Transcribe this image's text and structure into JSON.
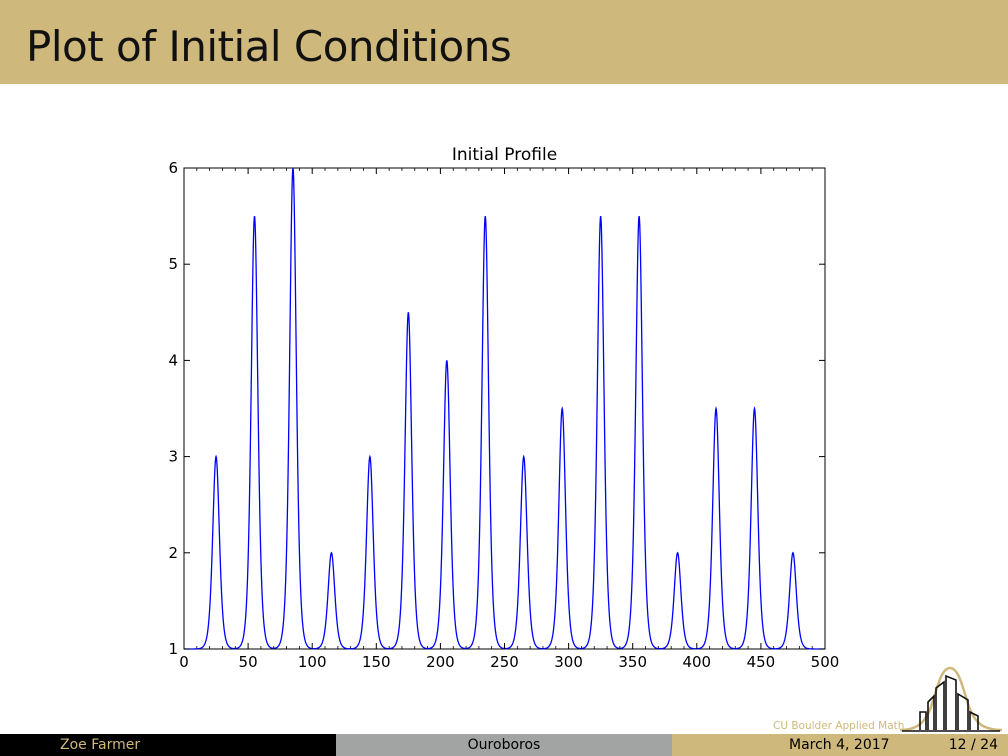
{
  "slide": {
    "title": "Plot of Initial Conditions"
  },
  "chart_data": {
    "type": "line",
    "title": "Initial Profile",
    "xlabel": "",
    "ylabel": "",
    "xlim": [
      0,
      500
    ],
    "ylim": [
      1,
      6
    ],
    "x_ticks": [
      0,
      50,
      100,
      150,
      200,
      250,
      300,
      350,
      400,
      450,
      500
    ],
    "y_ticks": [
      1,
      2,
      3,
      4,
      5,
      6
    ],
    "color": "#0000ff",
    "grid": false,
    "baseline": 1,
    "series": [
      {
        "name": "profile",
        "peaks": [
          {
            "x": 25,
            "y": 3.0
          },
          {
            "x": 55,
            "y": 5.5
          },
          {
            "x": 85,
            "y": 6.0
          },
          {
            "x": 115,
            "y": 2.0
          },
          {
            "x": 145,
            "y": 3.0
          },
          {
            "x": 175,
            "y": 4.5
          },
          {
            "x": 205,
            "y": 4.0
          },
          {
            "x": 235,
            "y": 5.5
          },
          {
            "x": 265,
            "y": 3.0
          },
          {
            "x": 295,
            "y": 3.5
          },
          {
            "x": 325,
            "y": 5.5
          },
          {
            "x": 355,
            "y": 5.5
          },
          {
            "x": 385,
            "y": 2.0
          },
          {
            "x": 415,
            "y": 3.5
          },
          {
            "x": 445,
            "y": 3.5
          },
          {
            "x": 475,
            "y": 2.0
          }
        ]
      }
    ]
  },
  "logo": {
    "text": "CU Boulder Applied Math"
  },
  "footer": {
    "author": "Zoe Farmer",
    "talk_title": "Ouroboros",
    "date": "March 4, 2017",
    "page": "12 / 24"
  }
}
